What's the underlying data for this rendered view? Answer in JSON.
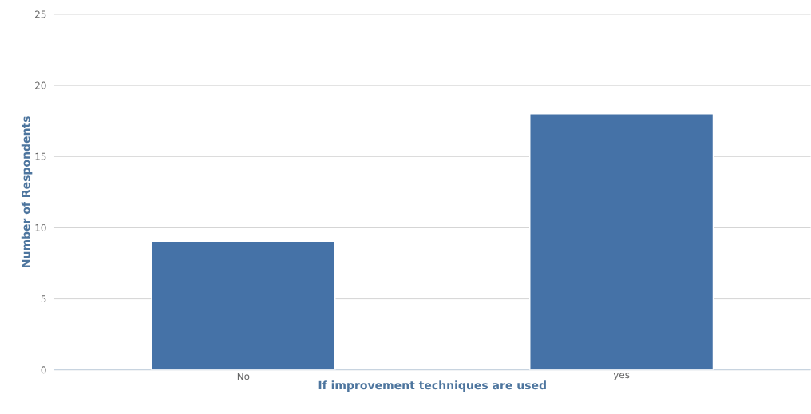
{
  "chart_data": {
    "type": "bar",
    "xlabel": "If improvement techniques are used",
    "ylabel": "Number of Respondents",
    "categories": [
      "No",
      "yes"
    ],
    "values": [
      9,
      18
    ],
    "color": "#4572a7",
    "ylim": [
      0,
      25
    ],
    "yticks": [
      0,
      5,
      10,
      15,
      20,
      25
    ],
    "grid": "y"
  }
}
